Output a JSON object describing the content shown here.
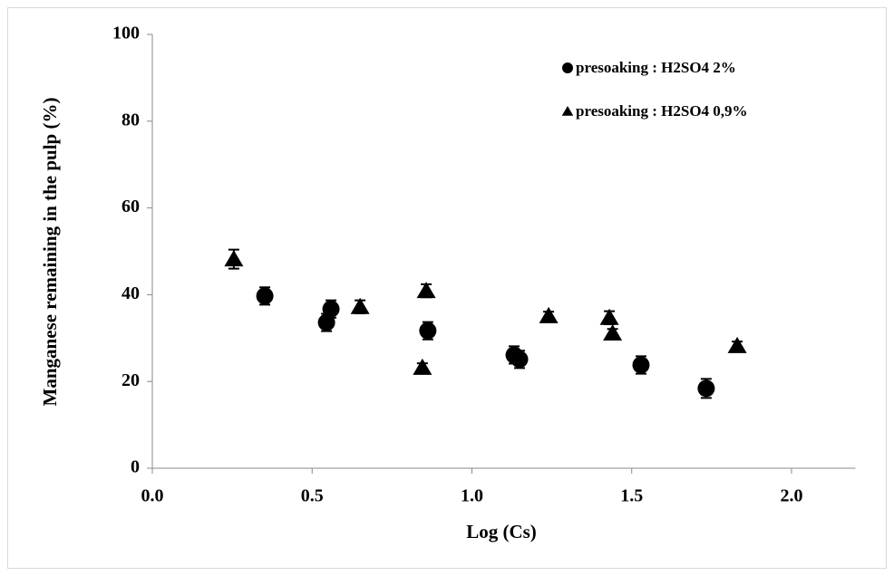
{
  "chart_data": {
    "type": "scatter",
    "x_label": "Log (Cs)",
    "y_label": "Manganese  remaining  in the pulp (%)",
    "xlim": [
      0,
      2.2
    ],
    "xticks": [
      {
        "value": 0,
        "label": "0.0"
      },
      0.5,
      {
        "value": 1,
        "label": "1.0"
      },
      1.5,
      {
        "value": 2,
        "label": "2.0"
      }
    ],
    "ylim": [
      0,
      100
    ],
    "yticks": [
      0,
      20,
      40,
      60,
      80,
      100
    ],
    "grid": false,
    "legend": "top-right",
    "series": [
      {
        "name": "presoaking : H2SO4 2%",
        "color": "#000000",
        "marker": "circle",
        "x": [
          0.352,
          0.545,
          0.559,
          0.862,
          1.132,
          1.149,
          1.529,
          1.733
        ],
        "values": [
          39.7,
          33.6,
          36.7,
          31.7,
          26.1,
          25.1,
          23.8,
          18.4
        ],
        "errors": [
          2,
          2,
          2,
          2,
          2,
          2,
          2,
          2.2
        ]
      },
      {
        "name": "presoaking : H2SO4 0,9%",
        "color": "#000000",
        "marker": "triangle",
        "x": [
          0.255,
          0.65,
          0.845,
          0.857,
          1.24,
          1.43,
          1.44,
          1.83
        ],
        "values": [
          48.2,
          37.2,
          23.2,
          40.9,
          35.1,
          34.7,
          31.1,
          28.2
        ],
        "errors": [
          2.2,
          1.5,
          1,
          1.5,
          1,
          1.5,
          1,
          1
        ]
      }
    ]
  }
}
